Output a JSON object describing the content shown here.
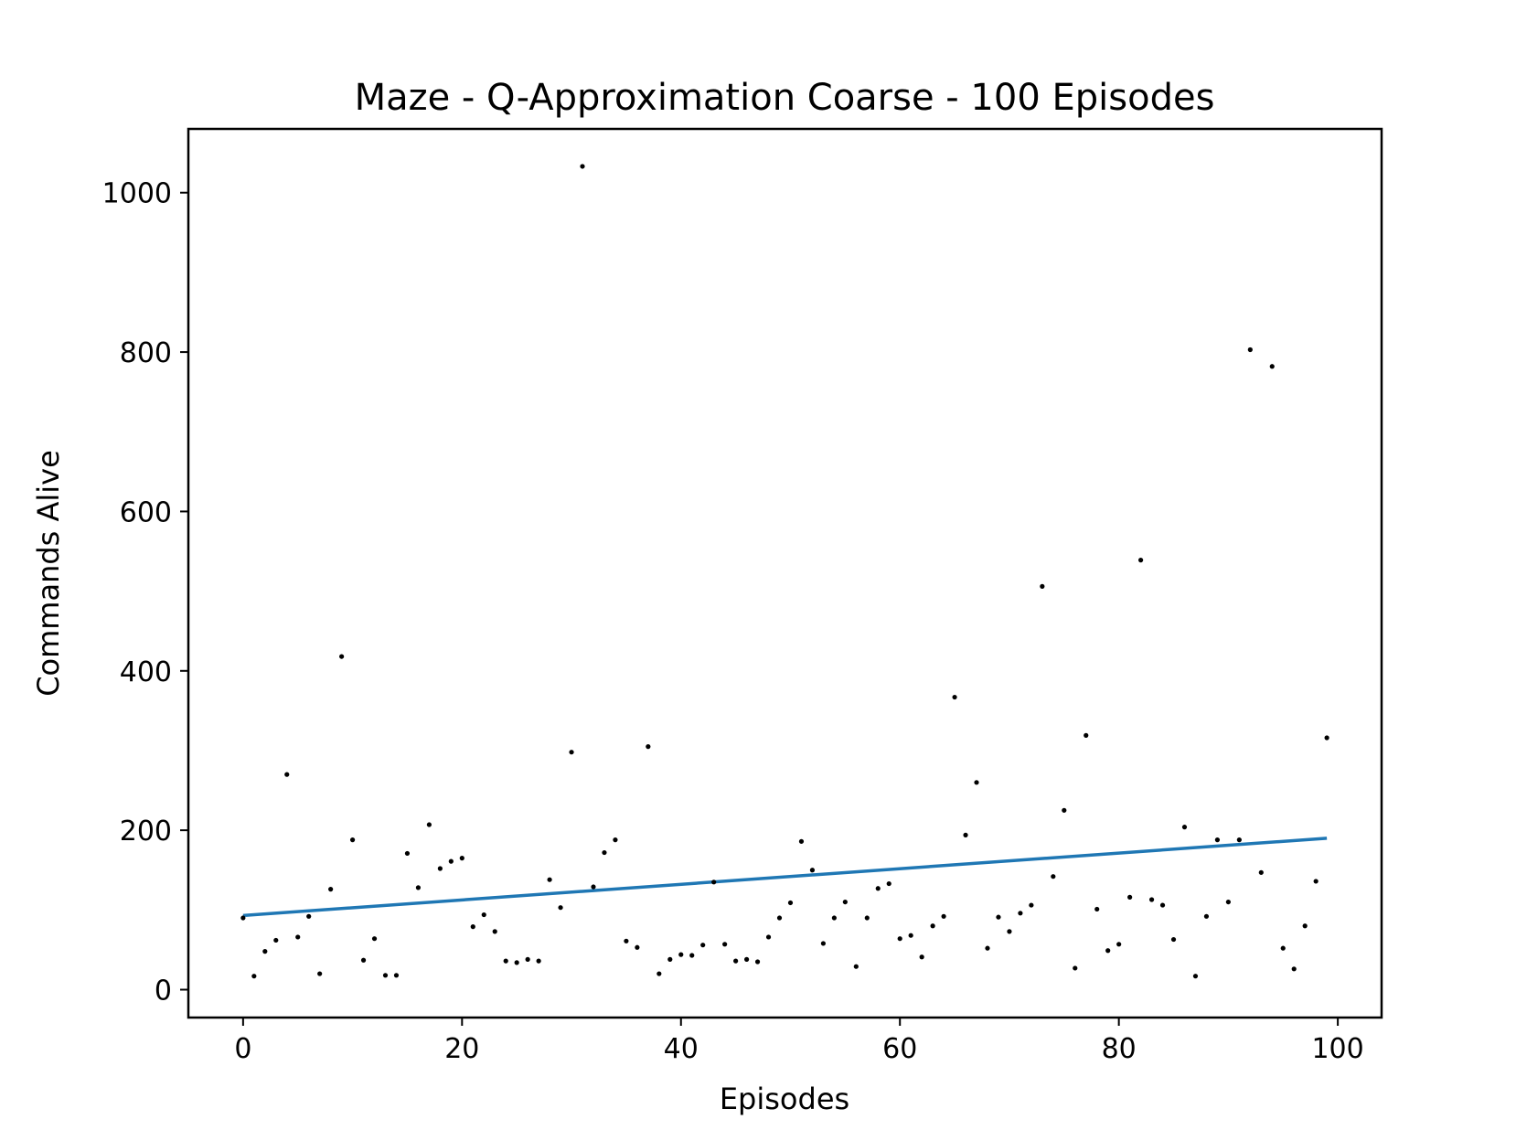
{
  "chart_data": {
    "type": "scatter",
    "title": "Maze - Q-Approximation Coarse - 100 Episodes",
    "xlabel": "Episodes",
    "ylabel": "Commands Alive",
    "xlim": [
      -5,
      104
    ],
    "ylim": [
      -35,
      1080
    ],
    "xticks": [
      0,
      20,
      40,
      60,
      80,
      100
    ],
    "yticks": [
      0,
      200,
      400,
      600,
      800,
      1000
    ],
    "grid": false,
    "legend": "none",
    "point_color": "#000000",
    "trend_color": "#1f77b4",
    "x": [
      0,
      1,
      2,
      3,
      4,
      5,
      6,
      7,
      8,
      9,
      10,
      11,
      12,
      13,
      14,
      15,
      16,
      17,
      18,
      19,
      20,
      21,
      22,
      23,
      24,
      25,
      26,
      27,
      28,
      29,
      30,
      31,
      32,
      33,
      34,
      35,
      36,
      37,
      38,
      39,
      40,
      41,
      42,
      43,
      44,
      45,
      46,
      47,
      48,
      49,
      50,
      51,
      52,
      53,
      54,
      55,
      56,
      57,
      58,
      59,
      60,
      61,
      62,
      63,
      64,
      65,
      66,
      67,
      68,
      69,
      70,
      71,
      72,
      73,
      74,
      75,
      76,
      77,
      78,
      79,
      80,
      81,
      82,
      83,
      84,
      85,
      86,
      87,
      88,
      89,
      90,
      91,
      92,
      93,
      94,
      95,
      96,
      97,
      98,
      99
    ],
    "y": [
      90,
      17,
      48,
      62,
      270,
      66,
      92,
      20,
      126,
      418,
      188,
      37,
      64,
      18,
      18,
      171,
      128,
      207,
      152,
      161,
      165,
      79,
      94,
      73,
      36,
      34,
      38,
      36,
      138,
      103,
      298,
      1033,
      129,
      172,
      188,
      61,
      53,
      305,
      20,
      38,
      44,
      43,
      56,
      135,
      57,
      36,
      38,
      35,
      66,
      90,
      109,
      186,
      150,
      58,
      90,
      110,
      29,
      90,
      127,
      133,
      64,
      68,
      41,
      80,
      92,
      367,
      194,
      260,
      52,
      91,
      73,
      96,
      106,
      506,
      142,
      225,
      27,
      319,
      101,
      49,
      57,
      116,
      539,
      113,
      106,
      63,
      204,
      17,
      92,
      188,
      110,
      188,
      803,
      147,
      782,
      52,
      26,
      80,
      136,
      316
    ],
    "trend": {
      "x0": 0,
      "y0": 93,
      "x1": 99,
      "y1": 190
    }
  }
}
